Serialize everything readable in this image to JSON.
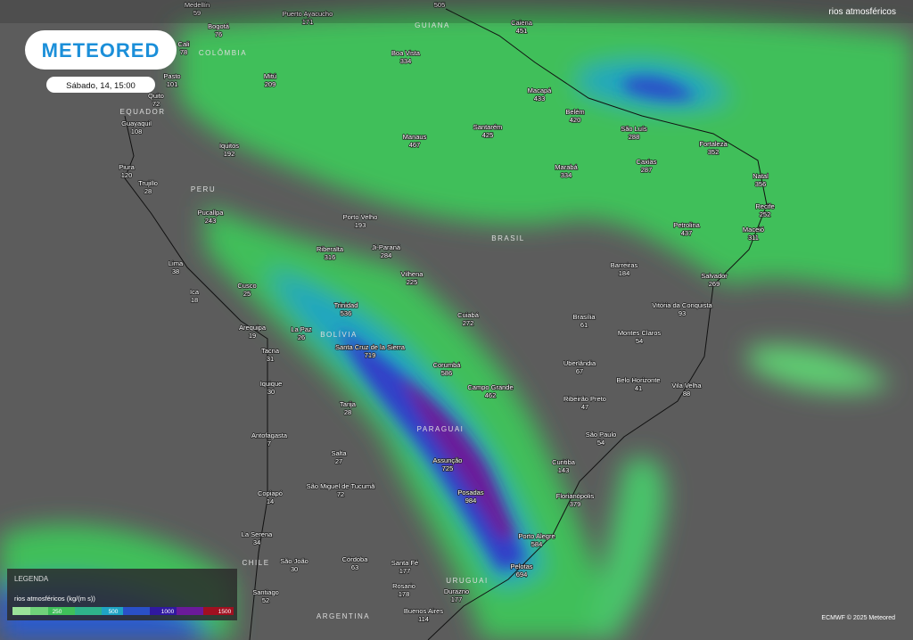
{
  "header": {
    "logo": "METEORED",
    "date": "Sábado, 14, 15:00",
    "layer": "rios atmosféricos"
  },
  "regions": [
    "GUIANA",
    "COLÔMBIA",
    "EQUADOR",
    "PERU",
    "BRASIL",
    "BOLÍVIA",
    "PARAGUAI",
    "CHILE",
    "URUGUAI",
    "ARGENTINA"
  ],
  "cities": [
    {
      "name": "Medellín",
      "value": 59
    },
    {
      "name": "Puerto Ayacucho",
      "value": 171
    },
    {
      "name": null,
      "value": 505
    },
    {
      "name": "Bogotá",
      "value": 76
    },
    {
      "name": "Cali",
      "value": 78
    },
    {
      "name": "Caiena",
      "value": 451
    },
    {
      "name": "Boa Vista",
      "value": 334
    },
    {
      "name": "Pasto",
      "value": 101
    },
    {
      "name": "Mitú",
      "value": 209
    },
    {
      "name": "Quito",
      "value": 72
    },
    {
      "name": "Guayaquil",
      "value": 108
    },
    {
      "name": "Macapá",
      "value": 433
    },
    {
      "name": "Belém",
      "value": 420
    },
    {
      "name": "São Luís",
      "value": 288
    },
    {
      "name": "Manaus",
      "value": 467
    },
    {
      "name": "Santarém",
      "value": 425
    },
    {
      "name": "Iquitos",
      "value": 192
    },
    {
      "name": "Fortaleza",
      "value": 352
    },
    {
      "name": "Piura",
      "value": 120
    },
    {
      "name": "Caxias",
      "value": 287
    },
    {
      "name": "Marabá",
      "value": 334
    },
    {
      "name": "Natal",
      "value": 356
    },
    {
      "name": "Trujillo",
      "value": 28
    },
    {
      "name": "Pucallpa",
      "value": 243
    },
    {
      "name": "Recife",
      "value": 252
    },
    {
      "name": "Porto Velho",
      "value": 193
    },
    {
      "name": "Petrolina",
      "value": 437
    },
    {
      "name": "Maceió",
      "value": 311
    },
    {
      "name": "Ji-Paraná",
      "value": 284
    },
    {
      "name": "Riberalta",
      "value": 316
    },
    {
      "name": "Lima",
      "value": 38
    },
    {
      "name": "Barreiras",
      "value": 184
    },
    {
      "name": "Vilhena",
      "value": 225
    },
    {
      "name": "Salvador",
      "value": 269
    },
    {
      "name": "Cusco",
      "value": 25
    },
    {
      "name": "Ica",
      "value": 18
    },
    {
      "name": "Trinidad",
      "value": 536
    },
    {
      "name": "Vitória da Conquista",
      "value": 93
    },
    {
      "name": "Cuiabá",
      "value": 272
    },
    {
      "name": "Brasília",
      "value": 61
    },
    {
      "name": "Arequipa",
      "value": 19
    },
    {
      "name": "La Paz",
      "value": 26
    },
    {
      "name": "Montes Claros",
      "value": 54
    },
    {
      "name": "Santa Cruz de la Sierra",
      "value": 719
    },
    {
      "name": "Tacna",
      "value": 31
    },
    {
      "name": "Uberlândia",
      "value": 67
    },
    {
      "name": "Corumbá",
      "value": 586
    },
    {
      "name": "Belo Horizonte",
      "value": 41
    },
    {
      "name": "Vila Velha",
      "value": 88
    },
    {
      "name": "Iquique",
      "value": 30
    },
    {
      "name": "Campo Grande",
      "value": 462
    },
    {
      "name": "Ribeirão Preto",
      "value": 47
    },
    {
      "name": "Tarija",
      "value": 28
    },
    {
      "name": "São Paulo",
      "value": 54
    },
    {
      "name": "Antofagasta",
      "value": 7
    },
    {
      "name": "Salta",
      "value": 27
    },
    {
      "name": "Assunção",
      "value": 725
    },
    {
      "name": "Curitiba",
      "value": 143
    },
    {
      "name": "Copiapó",
      "value": 14
    },
    {
      "name": "São Miguel de Tucumã",
      "value": 72
    },
    {
      "name": "Posadas",
      "value": 984
    },
    {
      "name": "Florianópolis",
      "value": 379
    },
    {
      "name": "La Serena",
      "value": 34
    },
    {
      "name": "Porto Alegre",
      "value": 584
    },
    {
      "name": "São João",
      "value": 30
    },
    {
      "name": "Córdoba",
      "value": 63
    },
    {
      "name": "Santa Fé",
      "value": 177
    },
    {
      "name": "Pelotas",
      "value": 694
    },
    {
      "name": "Rosario",
      "value": 178
    },
    {
      "name": "Santiago",
      "value": 52
    },
    {
      "name": "Durazno",
      "value": 177
    },
    {
      "name": "Buenos Aires",
      "value": 114
    }
  ],
  "legend": {
    "title": "LEGENDA",
    "label": "rios atmosféricos (kg/(m s))",
    "scale": [
      250,
      500,
      1000,
      1500
    ]
  },
  "credit": "ECMWF © 2025 Meteored"
}
